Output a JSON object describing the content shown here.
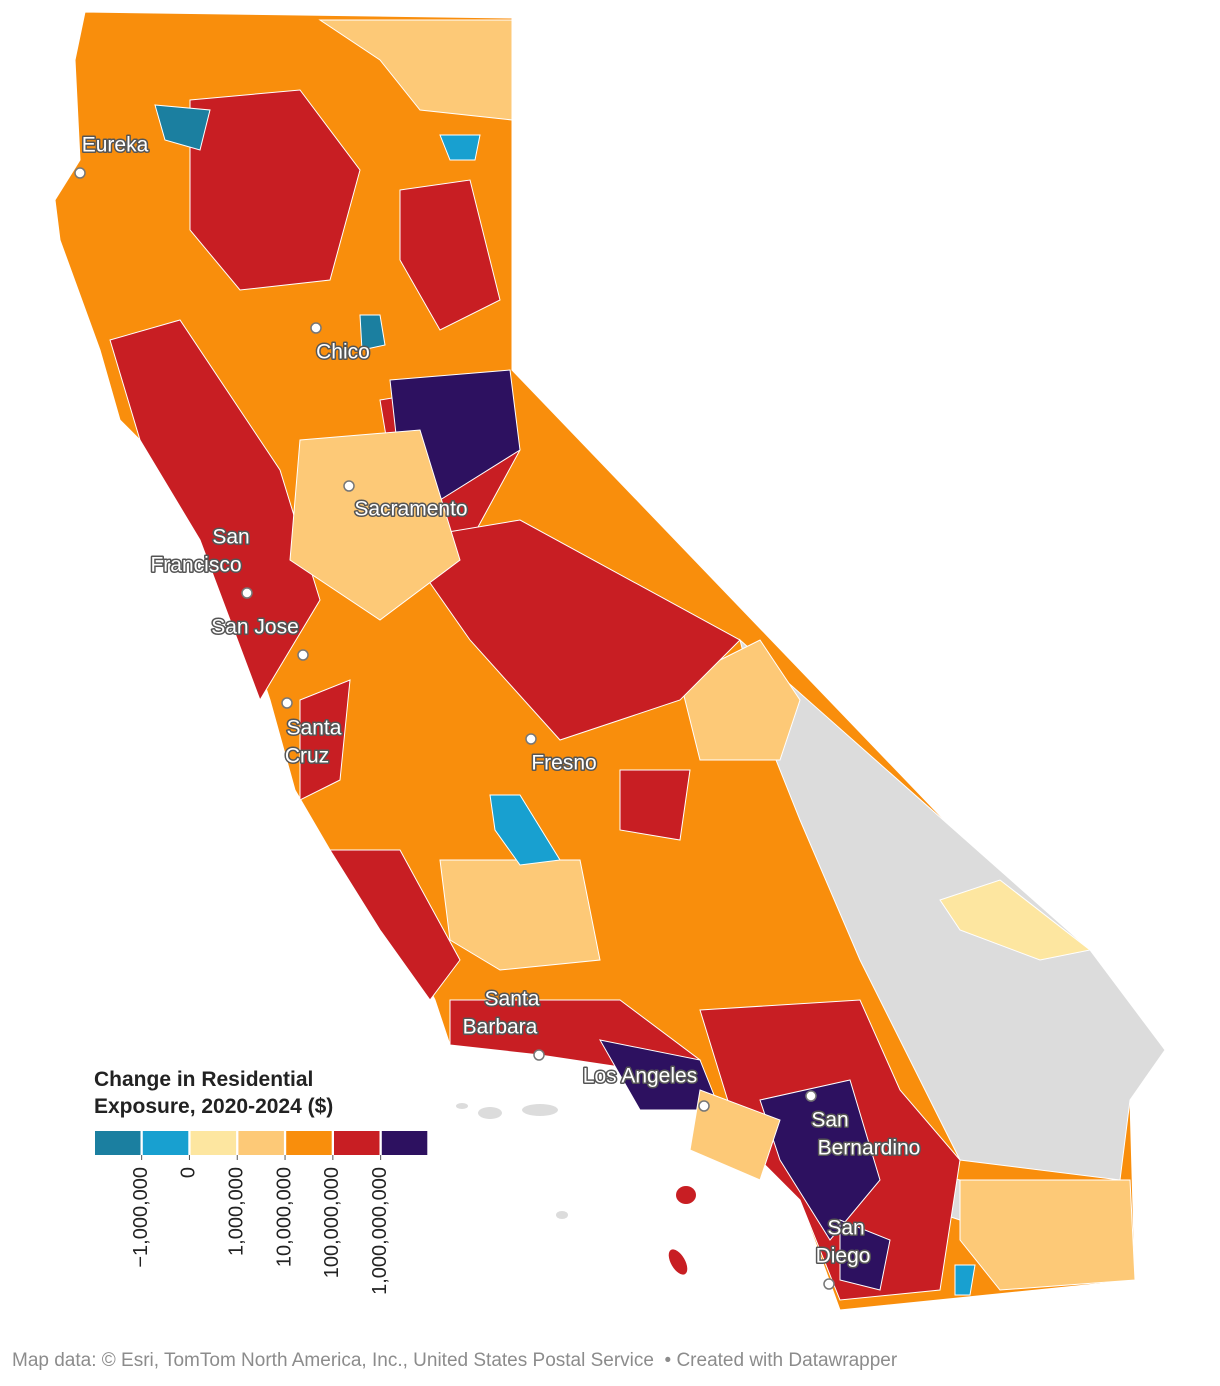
{
  "legend": {
    "title": "Change in Residential Exposure, 2020-2024 ($)",
    "colors": [
      "#1b7fa0",
      "#18a0d0",
      "#fde6a0",
      "#fdc977",
      "#f98e0c",
      "#c81e23",
      "#2d1160"
    ],
    "ticks": [
      {
        "value": -1000000,
        "label": "−1,000,000"
      },
      0,
      {
        "value": 1000000,
        "label": "1,000,000"
      },
      {
        "value": 10000000,
        "label": "10,000,000"
      },
      {
        "value": 100000000,
        "label": "100,000,000"
      },
      {
        "value": 1000000000,
        "label": "1,000,000,000"
      }
    ]
  },
  "cities": [
    {
      "name": [
        "Eureka"
      ]
    },
    {
      "name": [
        "Chico"
      ]
    },
    {
      "name": [
        "Sacramento"
      ]
    },
    {
      "name": [
        "San",
        "Francisco"
      ]
    },
    {
      "name": [
        "San Jose"
      ]
    },
    {
      "name": [
        "Santa",
        "Cruz"
      ]
    },
    {
      "name": [
        "Fresno"
      ]
    },
    {
      "name": [
        "Santa",
        "Barbara"
      ]
    },
    {
      "name": [
        "Los Angeles"
      ]
    },
    {
      "name": [
        "San",
        "Bernardino"
      ]
    },
    {
      "name": [
        "San",
        "Diego"
      ]
    }
  ],
  "footer": {
    "source": "Map data: © Esri, TomTom North America, Inc., United States Postal Service",
    "credit": "• Created with Datawrapper"
  }
}
